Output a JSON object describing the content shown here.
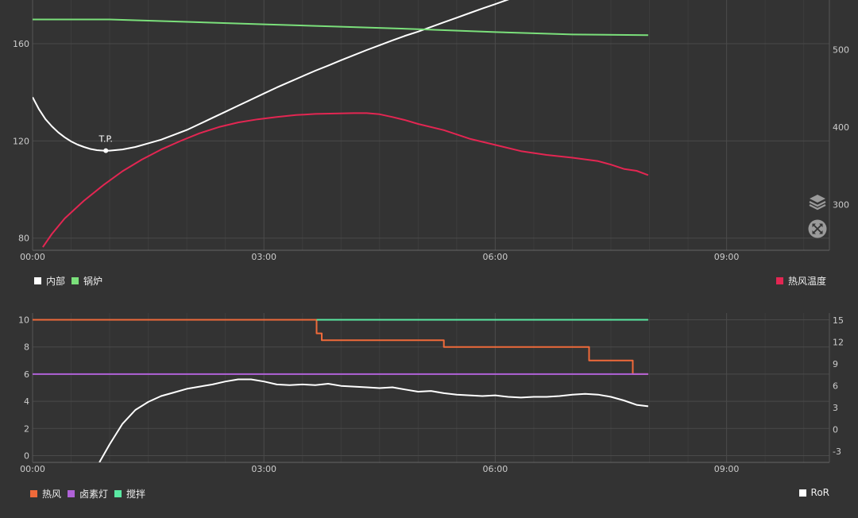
{
  "chart_data": [
    {
      "type": "line",
      "title": "",
      "x_unit": "mm:ss",
      "xlim": [
        0,
        620
      ],
      "x_ticks": [
        "00:00",
        "03:00",
        "06:00",
        "09:00"
      ],
      "y_left": {
        "ticks": [
          "80",
          "120",
          "160"
        ],
        "ylim": [
          75,
          178
        ]
      },
      "y_right": {
        "ticks": [
          "300",
          "400",
          "500"
        ],
        "ylim": [
          241,
          564
        ]
      },
      "grid": true,
      "series": [
        {
          "name": "内部",
          "axis": "left",
          "color": "#ffffff",
          "x": [
            0,
            5,
            10,
            15,
            20,
            25,
            30,
            35,
            40,
            45,
            50,
            55,
            60,
            70,
            80,
            90,
            100,
            110,
            120,
            130,
            140,
            150,
            160,
            170,
            180,
            190,
            200,
            210,
            220,
            230,
            240,
            250,
            260,
            270,
            280,
            290,
            300,
            310,
            320,
            330,
            340,
            350,
            360,
            370,
            380,
            390,
            400,
            410,
            420,
            430,
            440,
            450,
            460,
            470,
            479
          ],
          "values": [
            138.0,
            133.0,
            129.0,
            126.0,
            123.5,
            121.5,
            119.8,
            118.5,
            117.5,
            116.7,
            116.2,
            116.0,
            116.0,
            116.5,
            117.5,
            119.0,
            120.5,
            122.5,
            124.5,
            127.0,
            129.5,
            132.0,
            134.5,
            137.0,
            139.5,
            142.0,
            144.3,
            146.6,
            148.9,
            151.0,
            153.2,
            155.3,
            157.4,
            159.4,
            161.4,
            163.3,
            165.0,
            166.9,
            168.8,
            170.7,
            172.6,
            174.5,
            176.3,
            178.2,
            180.0,
            181.8,
            183.6,
            185.4,
            187.2,
            189.0,
            190.8,
            192.7,
            194.6,
            196.3,
            197.5
          ]
        },
        {
          "name": "锅炉",
          "axis": "left",
          "color": "#7be07b",
          "x": [
            0,
            60,
            120,
            180,
            240,
            300,
            360,
            420,
            479
          ],
          "values": [
            170.0,
            170.0,
            169.0,
            168.0,
            167.0,
            166.0,
            164.8,
            163.8,
            163.5
          ]
        },
        {
          "name": "热风温度",
          "axis": "right",
          "color": "#e32652",
          "x": [
            8,
            15,
            25,
            40,
            55,
            70,
            85,
            100,
            115,
            130,
            145,
            160,
            175,
            190,
            205,
            220,
            235,
            250,
            260,
            270,
            280,
            290,
            300,
            320,
            340,
            360,
            380,
            400,
            420,
            440,
            450,
            460,
            470,
            479
          ],
          "values": [
            245,
            262,
            282,
            305,
            325,
            343,
            358,
            371,
            382,
            392,
            400,
            406,
            410,
            413,
            415.5,
            417,
            417.5,
            418,
            418,
            416.5,
            413,
            409,
            404,
            396,
            385,
            377,
            369,
            364,
            360.5,
            356,
            351.5,
            346,
            343.5,
            338
          ]
        }
      ],
      "annotations": [
        {
          "text": "T.P.",
          "x": 57,
          "y": 116.0
        }
      ],
      "legend": {
        "left": [
          {
            "label": "内部",
            "color": "#ffffff"
          },
          {
            "label": "锅炉",
            "color": "#7be07b"
          }
        ],
        "right": [
          {
            "label": "热风温度",
            "color": "#e32652"
          }
        ]
      }
    },
    {
      "type": "line",
      "title": "",
      "x_unit": "mm:ss",
      "xlim": [
        0,
        620
      ],
      "x_ticks": [
        "00:00",
        "03:00",
        "06:00",
        "09:00"
      ],
      "y_left": {
        "ticks": [
          "0",
          "2",
          "4",
          "6",
          "8",
          "10"
        ],
        "ylim": [
          -0.5,
          10.5
        ]
      },
      "y_right": {
        "ticks": [
          "-3",
          "0",
          "3",
          "6",
          "9",
          "12",
          "15"
        ],
        "ylim": [
          -4.5,
          16
        ]
      },
      "grid": true,
      "series": [
        {
          "name": "热风",
          "axis": "left",
          "step": true,
          "color": "#ef6a3a",
          "x": [
            0,
            221,
            221,
            225,
            225,
            320,
            320,
            433,
            433,
            467,
            467,
            479
          ],
          "values": [
            10,
            10,
            9.0,
            9.0,
            8.5,
            8.5,
            8.0,
            8.0,
            7.0,
            7.0,
            6.0,
            6.0
          ]
        },
        {
          "name": "卤素灯",
          "axis": "left",
          "color": "#b062d8",
          "x": [
            0,
            479
          ],
          "values": [
            6,
            6
          ]
        },
        {
          "name": "搅拌",
          "axis": "left",
          "color": "#5ae8a2",
          "x": [
            221,
            479
          ],
          "values": [
            10,
            10
          ]
        },
        {
          "name": "RoR",
          "axis": "right",
          "color": "#ffffff",
          "x": [
            52,
            60,
            70,
            80,
            90,
            100,
            110,
            120,
            130,
            140,
            150,
            160,
            170,
            180,
            190,
            200,
            210,
            220,
            230,
            240,
            250,
            260,
            270,
            280,
            290,
            300,
            310,
            320,
            330,
            340,
            350,
            360,
            370,
            380,
            390,
            400,
            410,
            420,
            430,
            440,
            450,
            460,
            470,
            479
          ],
          "values": [
            -4.5,
            -2.0,
            0.8,
            2.7,
            3.8,
            4.6,
            5.1,
            5.6,
            5.9,
            6.2,
            6.6,
            6.9,
            6.9,
            6.6,
            6.2,
            6.1,
            6.2,
            6.1,
            6.3,
            6.0,
            5.9,
            5.8,
            5.7,
            5.8,
            5.5,
            5.2,
            5.3,
            5.0,
            4.8,
            4.7,
            4.6,
            4.7,
            4.5,
            4.4,
            4.5,
            4.5,
            4.6,
            4.8,
            4.9,
            4.8,
            4.5,
            4.0,
            3.4,
            3.2
          ]
        }
      ],
      "legend": {
        "left": [
          {
            "label": "热风",
            "color": "#ef6a3a"
          },
          {
            "label": "卤素灯",
            "color": "#b062d8"
          },
          {
            "label": "搅拌",
            "color": "#5ae8a2"
          }
        ],
        "right": [
          {
            "label": "RoR",
            "color": "#ffffff"
          }
        ]
      }
    }
  ],
  "controls": {
    "layers_icon": "layers-icon",
    "expand_icon": "expand-arrows-icon"
  }
}
